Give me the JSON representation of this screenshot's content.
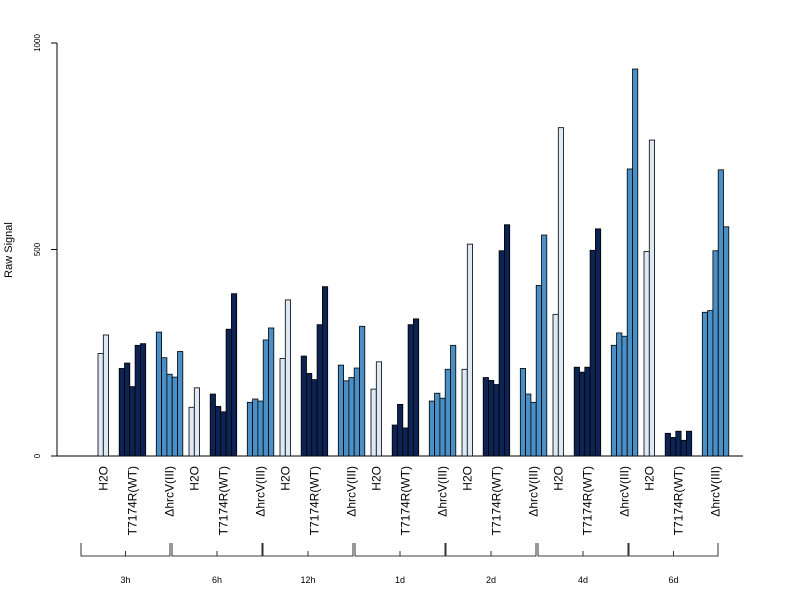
{
  "chart_data": {
    "type": "bar",
    "ylabel": "Raw Signal",
    "ylim": [
      0,
      1000
    ],
    "yticks": [
      0,
      500,
      1000
    ],
    "legend": "none",
    "groups": [
      {
        "time": "3h",
        "conditions": [
          {
            "label": "H2O",
            "color": "#dde9f5",
            "values": [
              248,
              293
            ]
          },
          {
            "label": "T7174R(WT)",
            "color": "#0d2353",
            "values": [
              212,
              225,
              168,
              268,
              272
            ]
          },
          {
            "label": "ΔhrcV(III)",
            "color": "#4a8fc5",
            "values": [
              300,
              238,
              198,
              191,
              253
            ]
          }
        ]
      },
      {
        "time": "6h",
        "conditions": [
          {
            "label": "H2O",
            "color": "#dde9f5",
            "values": [
              118,
              165
            ]
          },
          {
            "label": "T7174R(WT)",
            "color": "#0d2353",
            "values": [
              150,
              120,
              107,
              307,
              393
            ]
          },
          {
            "label": "ΔhrcV(III)",
            "color": "#4a8fc5",
            "values": [
              130,
              138,
              133,
              281,
              310
            ]
          }
        ]
      },
      {
        "time": "12h",
        "conditions": [
          {
            "label": "H2O",
            "color": "#dde9f5",
            "values": [
              236,
              378
            ]
          },
          {
            "label": "T7174R(WT)",
            "color": "#0d2353",
            "values": [
              242,
              200,
              185,
              318,
              410
            ]
          },
          {
            "label": "ΔhrcV(III)",
            "color": "#4a8fc5",
            "values": [
              220,
              182,
              190,
              213,
              314
            ]
          }
        ]
      },
      {
        "time": "1d",
        "conditions": [
          {
            "label": "H2O",
            "color": "#dde9f5",
            "values": [
              162,
              228
            ]
          },
          {
            "label": "T7174R(WT)",
            "color": "#0d2353",
            "values": [
              75,
              125,
              68,
              318,
              332
            ]
          },
          {
            "label": "ΔhrcV(III)",
            "color": "#4a8fc5",
            "values": [
              133,
              152,
              140,
              210,
              268
            ]
          }
        ]
      },
      {
        "time": "2d",
        "conditions": [
          {
            "label": "H2O",
            "color": "#dde9f5",
            "values": [
              210,
              513
            ]
          },
          {
            "label": "T7174R(WT)",
            "color": "#0d2353",
            "values": [
              190,
              183,
              173,
              497,
              560
            ]
          },
          {
            "label": "ΔhrcV(III)",
            "color": "#4a8fc5",
            "values": [
              212,
              150,
              130,
              413,
              535
            ]
          }
        ]
      },
      {
        "time": "4d",
        "conditions": [
          {
            "label": "H2O",
            "color": "#dde9f5",
            "values": [
              343,
              795
            ]
          },
          {
            "label": "T7174R(WT)",
            "color": "#0d2353",
            "values": [
              215,
              203,
              215,
              498,
              550
            ]
          },
          {
            "label": "ΔhrcV(III)",
            "color": "#4a8fc5",
            "values": [
              268,
              298,
              290,
              695,
              937
            ]
          }
        ]
      },
      {
        "time": "6d",
        "conditions": [
          {
            "label": "H2O",
            "color": "#dde9f5",
            "values": [
              495,
              765
            ]
          },
          {
            "label": "T7174R(WT)",
            "color": "#0d2353",
            "values": [
              55,
              45,
              60,
              38,
              60
            ]
          },
          {
            "label": "ΔhrcV(III)",
            "color": "#4a8fc5",
            "values": [
              348,
              352,
              497,
              693,
              555
            ]
          }
        ]
      }
    ]
  }
}
